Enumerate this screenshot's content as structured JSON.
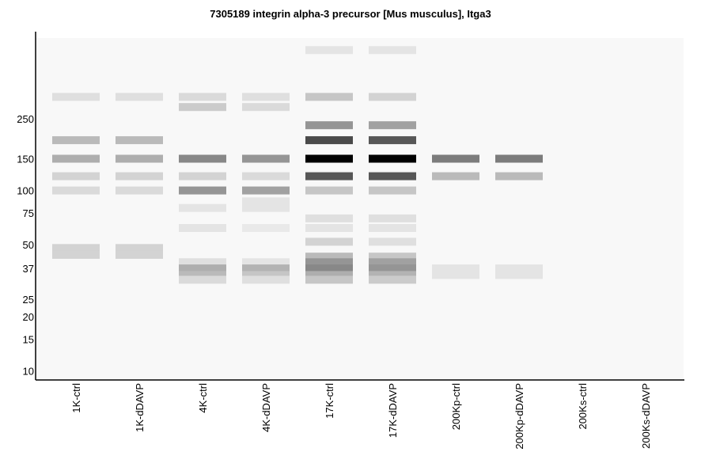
{
  "chart_data": {
    "type": "heatmap",
    "title": "7305189 integrin alpha-3 precursor [Mus musculus], Itga3",
    "xlabel": "",
    "ylabel": "",
    "y_scale": "log",
    "ylim": [
      9,
      700
    ],
    "y_ticks": [
      250,
      150,
      100,
      75,
      50,
      37,
      25,
      20,
      15,
      10
    ],
    "categories": [
      "1K-ctrl",
      "1K-dDAVP",
      "4K-ctrl",
      "4K-dDAVP",
      "17K-ctrl",
      "17K-dDAVP",
      "200Kp-ctrl",
      "200Kp-dDAVP",
      "200Ks-ctrl",
      "200Ks-dDAVP"
    ],
    "value_unit": "relative intensity (0-1)",
    "lanes": [
      {
        "name": "1K-ctrl",
        "bands": [
          {
            "mw": 330,
            "intensity": 0.1
          },
          {
            "mw": 190,
            "intensity": 0.25
          },
          {
            "mw": 150,
            "intensity": 0.3
          },
          {
            "mw": 120,
            "intensity": 0.15
          },
          {
            "mw": 100,
            "intensity": 0.12
          },
          {
            "mw": 48,
            "intensity": 0.15
          },
          {
            "mw": 44,
            "intensity": 0.15
          }
        ]
      },
      {
        "name": "1K-dDAVP",
        "bands": [
          {
            "mw": 330,
            "intensity": 0.1
          },
          {
            "mw": 190,
            "intensity": 0.25
          },
          {
            "mw": 150,
            "intensity": 0.3
          },
          {
            "mw": 120,
            "intensity": 0.15
          },
          {
            "mw": 100,
            "intensity": 0.12
          },
          {
            "mw": 48,
            "intensity": 0.15
          },
          {
            "mw": 44,
            "intensity": 0.15
          }
        ]
      },
      {
        "name": "4K-ctrl",
        "bands": [
          {
            "mw": 330,
            "intensity": 0.12
          },
          {
            "mw": 290,
            "intensity": 0.18
          },
          {
            "mw": 150,
            "intensity": 0.45
          },
          {
            "mw": 120,
            "intensity": 0.15
          },
          {
            "mw": 100,
            "intensity": 0.4
          },
          {
            "mw": 80,
            "intensity": 0.08
          },
          {
            "mw": 62,
            "intensity": 0.08
          },
          {
            "mw": 40,
            "intensity": 0.1
          },
          {
            "mw": 37,
            "intensity": 0.3
          },
          {
            "mw": 34,
            "intensity": 0.25
          },
          {
            "mw": 32,
            "intensity": 0.12
          }
        ]
      },
      {
        "name": "4K-dDAVP",
        "bands": [
          {
            "mw": 330,
            "intensity": 0.1
          },
          {
            "mw": 290,
            "intensity": 0.12
          },
          {
            "mw": 150,
            "intensity": 0.4
          },
          {
            "mw": 120,
            "intensity": 0.12
          },
          {
            "mw": 100,
            "intensity": 0.35
          },
          {
            "mw": 87,
            "intensity": 0.08
          },
          {
            "mw": 80,
            "intensity": 0.08
          },
          {
            "mw": 62,
            "intensity": 0.06
          },
          {
            "mw": 40,
            "intensity": 0.08
          },
          {
            "mw": 37,
            "intensity": 0.28
          },
          {
            "mw": 34,
            "intensity": 0.2
          },
          {
            "mw": 32,
            "intensity": 0.1
          }
        ]
      },
      {
        "name": "17K-ctrl",
        "bands": [
          {
            "mw": 600,
            "intensity": 0.08
          },
          {
            "mw": 330,
            "intensity": 0.2
          },
          {
            "mw": 230,
            "intensity": 0.4
          },
          {
            "mw": 190,
            "intensity": 0.7
          },
          {
            "mw": 150,
            "intensity": 1.0
          },
          {
            "mw": 120,
            "intensity": 0.65
          },
          {
            "mw": 100,
            "intensity": 0.2
          },
          {
            "mw": 70,
            "intensity": 0.1
          },
          {
            "mw": 62,
            "intensity": 0.08
          },
          {
            "mw": 52,
            "intensity": 0.15
          },
          {
            "mw": 43,
            "intensity": 0.25
          },
          {
            "mw": 40,
            "intensity": 0.4
          },
          {
            "mw": 37,
            "intensity": 0.45
          },
          {
            "mw": 34,
            "intensity": 0.3
          },
          {
            "mw": 32,
            "intensity": 0.2
          }
        ]
      },
      {
        "name": "17K-dDAVP",
        "bands": [
          {
            "mw": 600,
            "intensity": 0.08
          },
          {
            "mw": 330,
            "intensity": 0.15
          },
          {
            "mw": 230,
            "intensity": 0.35
          },
          {
            "mw": 190,
            "intensity": 0.65
          },
          {
            "mw": 150,
            "intensity": 1.0
          },
          {
            "mw": 120,
            "intensity": 0.65
          },
          {
            "mw": 100,
            "intensity": 0.2
          },
          {
            "mw": 70,
            "intensity": 0.1
          },
          {
            "mw": 62,
            "intensity": 0.08
          },
          {
            "mw": 52,
            "intensity": 0.1
          },
          {
            "mw": 43,
            "intensity": 0.2
          },
          {
            "mw": 40,
            "intensity": 0.35
          },
          {
            "mw": 37,
            "intensity": 0.4
          },
          {
            "mw": 34,
            "intensity": 0.28
          },
          {
            "mw": 32,
            "intensity": 0.18
          }
        ]
      },
      {
        "name": "200Kp-ctrl",
        "bands": [
          {
            "mw": 150,
            "intensity": 0.5
          },
          {
            "mw": 120,
            "intensity": 0.25
          },
          {
            "mw": 37,
            "intensity": 0.08
          },
          {
            "mw": 34,
            "intensity": 0.08
          }
        ]
      },
      {
        "name": "200Kp-dDAVP",
        "bands": [
          {
            "mw": 150,
            "intensity": 0.5
          },
          {
            "mw": 120,
            "intensity": 0.25
          },
          {
            "mw": 37,
            "intensity": 0.08
          },
          {
            "mw": 34,
            "intensity": 0.08
          }
        ]
      },
      {
        "name": "200Ks-ctrl",
        "bands": []
      },
      {
        "name": "200Ks-dDAVP",
        "bands": []
      }
    ],
    "grid": false,
    "legend": "none"
  }
}
